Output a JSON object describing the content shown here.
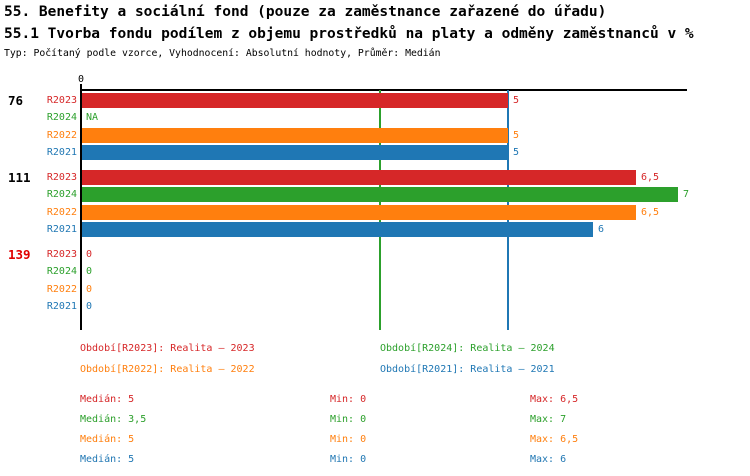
{
  "header": {
    "title": "55. Benefity a sociální fond (pouze za zaměstnance zařazené do úřadu)",
    "subtitle": "55.1 Tvorba fondu podílem z objemu prostředků na platy a odměny zaměstnanců v %",
    "meta": "Typ: Počítaný podle vzorce, Vyhodnocení: Absolutní hodnoty, Průměr: Medián"
  },
  "palette": {
    "r2023_red": "#d62728",
    "r2024_green": "#2ca02c",
    "r2022_orange": "#ff7f0e",
    "r2021_blue": "#1f77b4",
    "axis_black": "#000000",
    "highlight_red": "#e00000"
  },
  "chart_data": {
    "type": "bar",
    "orientation": "horizontal",
    "value_axis": {
      "zero_label": "0",
      "min": 0,
      "max": 7.1,
      "position": "top"
    },
    "series_order": [
      "R2023",
      "R2024",
      "R2022",
      "R2021"
    ],
    "groups": [
      {
        "label": "76",
        "label_color": "#000000",
        "bars": [
          {
            "series": "R2023",
            "value": 5,
            "label": "5",
            "color": "#d62728"
          },
          {
            "series": "R2024",
            "value": null,
            "label": "NA",
            "color": "#2ca02c"
          },
          {
            "series": "R2022",
            "value": 5,
            "label": "5",
            "color": "#ff7f0e"
          },
          {
            "series": "R2021",
            "value": 5,
            "label": "5",
            "color": "#1f77b4"
          }
        ]
      },
      {
        "label": "111",
        "label_color": "#000000",
        "bars": [
          {
            "series": "R2023",
            "value": 6.5,
            "label": "6,5",
            "color": "#d62728"
          },
          {
            "series": "R2024",
            "value": 7,
            "label": "7",
            "color": "#2ca02c"
          },
          {
            "series": "R2022",
            "value": 6.5,
            "label": "6,5",
            "color": "#ff7f0e"
          },
          {
            "series": "R2021",
            "value": 6,
            "label": "6",
            "color": "#1f77b4"
          }
        ]
      },
      {
        "label": "139",
        "label_color": "#e00000",
        "bars": [
          {
            "series": "R2023",
            "value": 0,
            "label": "0",
            "color": "#d62728"
          },
          {
            "series": "R2024",
            "value": 0,
            "label": "0",
            "color": "#2ca02c"
          },
          {
            "series": "R2022",
            "value": 0,
            "label": "0",
            "color": "#ff7f0e"
          },
          {
            "series": "R2021",
            "value": 0,
            "label": "0",
            "color": "#1f77b4"
          }
        ]
      }
    ],
    "median_gridlines": [
      {
        "value": 3.5,
        "color": "#2ca02c"
      },
      {
        "value": 5,
        "color": "#1f77b4"
      }
    ],
    "legend": [
      {
        "label": "Období[R2023]: Realita – 2023",
        "color": "#d62728",
        "col": 0,
        "row": 0
      },
      {
        "label": "Období[R2024]: Realita – 2024",
        "color": "#2ca02c",
        "col": 1,
        "row": 0
      },
      {
        "label": "Období[R2022]: Realita – 2022",
        "color": "#ff7f0e",
        "col": 0,
        "row": 1
      },
      {
        "label": "Období[R2021]: Realita – 2021",
        "color": "#1f77b4",
        "col": 1,
        "row": 1
      }
    ],
    "stats": [
      {
        "median": "Medián: 5",
        "min": "Min: 0",
        "max": "Max: 6,5",
        "color": "#d62728"
      },
      {
        "median": "Medián: 3,5",
        "min": "Min: 0",
        "max": "Max: 7",
        "color": "#2ca02c"
      },
      {
        "median": "Medián: 5",
        "min": "Min: 0",
        "max": "Max: 6,5",
        "color": "#ff7f0e"
      },
      {
        "median": "Medián: 5",
        "min": "Min: 0",
        "max": "Max: 6",
        "color": "#1f77b4"
      }
    ]
  }
}
